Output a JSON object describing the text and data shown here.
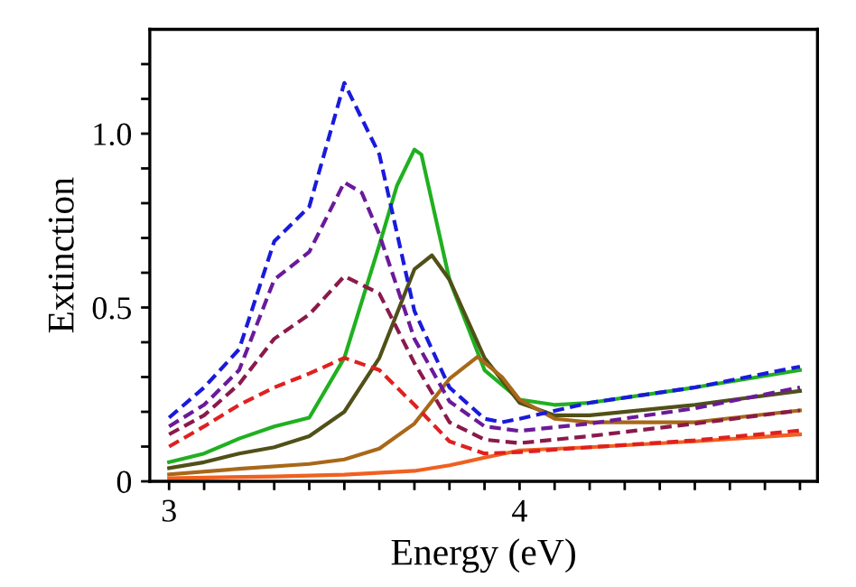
{
  "chart_data": {
    "type": "line",
    "xlabel": "Energy (eV)",
    "ylabel": "Extinction",
    "xlim": [
      2.945,
      4.85
    ],
    "ylim": [
      0,
      1.3
    ],
    "xticks": [
      3,
      {
        "value": 3.1,
        "label": null
      },
      {
        "value": 3.2,
        "label": null
      },
      {
        "value": 3.3,
        "label": null
      },
      {
        "value": 3.4,
        "label": null
      },
      {
        "value": 3.5,
        "label": null
      },
      {
        "value": 3.6,
        "label": null
      },
      {
        "value": 3.7,
        "label": null
      },
      {
        "value": 3.8,
        "label": null
      },
      {
        "value": 3.9,
        "label": null
      },
      4,
      {
        "value": 4.1,
        "label": null
      },
      {
        "value": 4.2,
        "label": null
      },
      {
        "value": 4.3,
        "label": null
      },
      {
        "value": 4.4,
        "label": null
      },
      {
        "value": 4.5,
        "label": null
      },
      {
        "value": 4.6,
        "label": null
      },
      {
        "value": 4.7,
        "label": null
      },
      {
        "value": 4.8,
        "label": null
      }
    ],
    "yticks": [
      0,
      {
        "value": 0.1,
        "label": null
      },
      {
        "value": 0.2,
        "label": null
      },
      {
        "value": 0.3,
        "label": null
      },
      {
        "value": 0.4,
        "label": null
      },
      0.5,
      {
        "value": 0.6,
        "label": null
      },
      {
        "value": 0.7,
        "label": null
      },
      {
        "value": 0.8,
        "label": null
      },
      {
        "value": 0.9,
        "label": null
      },
      {
        "value": 1.0,
        "label": "1.0"
      },
      {
        "value": 1.1,
        "label": null
      },
      {
        "value": 1.2,
        "label": null
      }
    ],
    "grid": false,
    "legend": false,
    "series": [
      {
        "color": "#1a1adc",
        "line_style": "dashed",
        "x": [
          3.0,
          3.1,
          3.2,
          3.3,
          3.4,
          3.5,
          3.6,
          3.7,
          3.8,
          3.9,
          3.95,
          4.0,
          4.2,
          4.5,
          4.8
        ],
        "values": [
          0.183,
          0.27,
          0.38,
          0.69,
          0.79,
          1.146,
          0.94,
          0.49,
          0.27,
          0.18,
          0.17,
          0.18,
          0.226,
          0.27,
          0.33
        ]
      },
      {
        "color": "#6a1a9a",
        "line_style": "dashed",
        "x": [
          3.0,
          3.1,
          3.2,
          3.3,
          3.4,
          3.5,
          3.55,
          3.6,
          3.7,
          3.8,
          3.9,
          4.0,
          4.2,
          4.5,
          4.8
        ],
        "values": [
          0.158,
          0.22,
          0.32,
          0.58,
          0.66,
          0.86,
          0.83,
          0.71,
          0.41,
          0.23,
          0.158,
          0.145,
          0.166,
          0.21,
          0.27
        ]
      },
      {
        "color": "#8a1a4a",
        "line_style": "dashed",
        "x": [
          3.0,
          3.1,
          3.2,
          3.3,
          3.4,
          3.5,
          3.6,
          3.7,
          3.8,
          3.9,
          4.0,
          4.2,
          4.5,
          4.8
        ],
        "values": [
          0.135,
          0.19,
          0.28,
          0.41,
          0.48,
          0.59,
          0.54,
          0.34,
          0.17,
          0.12,
          0.11,
          0.13,
          0.166,
          0.204
        ]
      },
      {
        "color": "#e02020",
        "line_style": "dashed",
        "x": [
          3.0,
          3.1,
          3.2,
          3.3,
          3.4,
          3.5,
          3.6,
          3.7,
          3.8,
          3.9,
          4.0,
          4.2,
          4.5,
          4.8
        ],
        "values": [
          0.1,
          0.158,
          0.22,
          0.27,
          0.31,
          0.355,
          0.32,
          0.22,
          0.115,
          0.08,
          0.084,
          0.098,
          0.118,
          0.146
        ]
      },
      {
        "color": "#20b020",
        "line_style": "solid",
        "x": [
          3.0,
          3.1,
          3.2,
          3.3,
          3.4,
          3.5,
          3.6,
          3.65,
          3.7,
          3.72,
          3.8,
          3.9,
          4.0,
          4.1,
          4.2,
          4.5,
          4.8
        ],
        "values": [
          0.055,
          0.08,
          0.123,
          0.158,
          0.183,
          0.355,
          0.68,
          0.85,
          0.954,
          0.94,
          0.58,
          0.32,
          0.235,
          0.22,
          0.226,
          0.27,
          0.32
        ]
      },
      {
        "color": "#505018",
        "line_style": "solid",
        "x": [
          3.0,
          3.1,
          3.2,
          3.3,
          3.4,
          3.5,
          3.6,
          3.7,
          3.75,
          3.8,
          3.9,
          4.0,
          4.1,
          4.2,
          4.5,
          4.8
        ],
        "values": [
          0.038,
          0.055,
          0.08,
          0.098,
          0.13,
          0.2,
          0.355,
          0.61,
          0.65,
          0.58,
          0.355,
          0.226,
          0.19,
          0.19,
          0.22,
          0.26
        ]
      },
      {
        "color": "#a86818",
        "line_style": "solid",
        "x": [
          3.0,
          3.2,
          3.4,
          3.5,
          3.6,
          3.7,
          3.8,
          3.88,
          3.95,
          4.0,
          4.1,
          4.2,
          4.5,
          4.8
        ],
        "values": [
          0.02,
          0.036,
          0.05,
          0.063,
          0.094,
          0.166,
          0.295,
          0.358,
          0.3,
          0.235,
          0.18,
          0.17,
          0.17,
          0.204
        ]
      },
      {
        "color": "#f06020",
        "line_style": "solid",
        "x": [
          3.0,
          3.3,
          3.5,
          3.7,
          3.8,
          3.9,
          4.0,
          4.2,
          4.5,
          4.8
        ],
        "values": [
          0.009,
          0.014,
          0.019,
          0.03,
          0.046,
          0.068,
          0.089,
          0.098,
          0.115,
          0.135
        ]
      }
    ]
  }
}
